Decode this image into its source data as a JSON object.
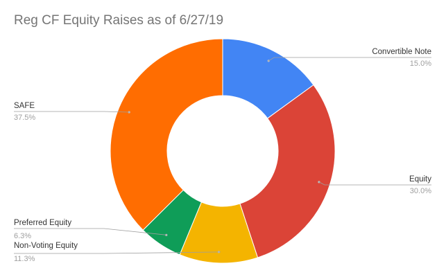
{
  "chart_data": {
    "type": "pie",
    "title": "Reg CF Equity Raises as of 6/27/19",
    "donut": true,
    "legend": "labels-with-leader-lines",
    "slices": [
      {
        "label": "Convertible Note",
        "value": 15.0,
        "display": "15.0%",
        "color": "#4285f4"
      },
      {
        "label": "Equity",
        "value": 30.0,
        "display": "30.0%",
        "color": "#db4437"
      },
      {
        "label": "Non-Voting Equity",
        "value": 11.3,
        "display": "11.3%",
        "color": "#f4b400"
      },
      {
        "label": "Preferred Equity",
        "value": 6.3,
        "display": "6.3%",
        "color": "#0f9d58"
      },
      {
        "label": "SAFE",
        "value": 37.5,
        "display": "37.5%",
        "color": "#ff6d01"
      }
    ]
  }
}
